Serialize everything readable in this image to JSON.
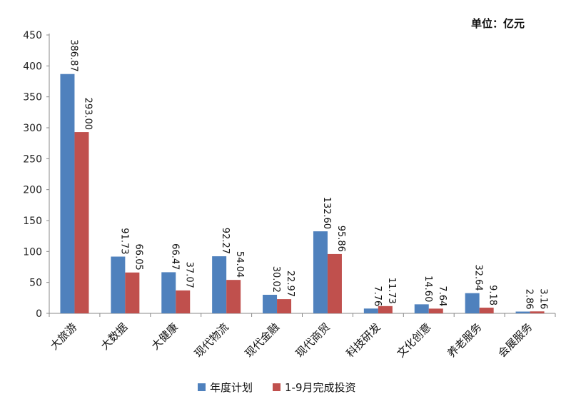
{
  "chart_data": {
    "type": "bar",
    "unit_label": "单位：亿元",
    "categories": [
      "大旅游",
      "大数据",
      "大健康",
      "现代物流",
      "现代金融",
      "现代商贸",
      "科技研发",
      "文化创意",
      "养老服务",
      "会展服务"
    ],
    "series": [
      {
        "name": "年度计划",
        "color": "#4f81bd",
        "values": [
          386.87,
          91.73,
          66.47,
          92.27,
          30.02,
          132.6,
          7.76,
          14.6,
          32.64,
          2.86
        ],
        "labels": [
          "386.87",
          "91.73",
          "66.47",
          "92.27",
          "30.02",
          "132.60",
          "7.76",
          "14.60",
          "32.64",
          "2.86"
        ]
      },
      {
        "name": "1-9月完成投资",
        "color": "#c0504d",
        "values": [
          293.0,
          66.05,
          37.07,
          54.04,
          22.97,
          95.86,
          11.73,
          7.64,
          9.18,
          3.16
        ],
        "labels": [
          "293.00",
          "66.05",
          "37.07",
          "54.04",
          "22.97",
          "95.86",
          "11.73",
          "7.64",
          "9.18",
          "3.16"
        ]
      }
    ],
    "yticks": [
      "0",
      "50",
      "100",
      "150",
      "200",
      "250",
      "300",
      "350",
      "400",
      "450"
    ],
    "ylim": [
      0,
      450
    ],
    "grid": false,
    "legend_position": "bottom"
  }
}
